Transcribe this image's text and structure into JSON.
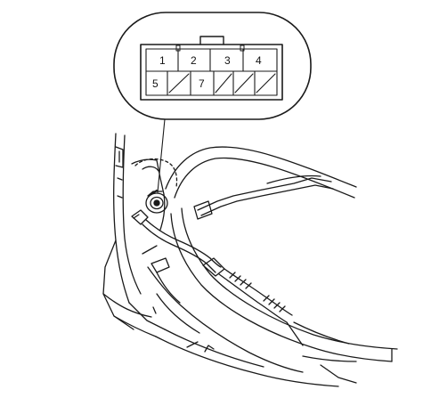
{
  "connector": {
    "top_row": [
      "1",
      "2",
      "3",
      "4"
    ],
    "bottom_row": [
      "5",
      "",
      "7",
      "",
      ""
    ],
    "blank_pins": [
      1,
      3,
      4
    ]
  },
  "colors": {
    "line": "#1a1a1a",
    "background": "#ffffff"
  },
  "icons": [
    "connector-face-icon",
    "wiring-harness-illustration"
  ]
}
